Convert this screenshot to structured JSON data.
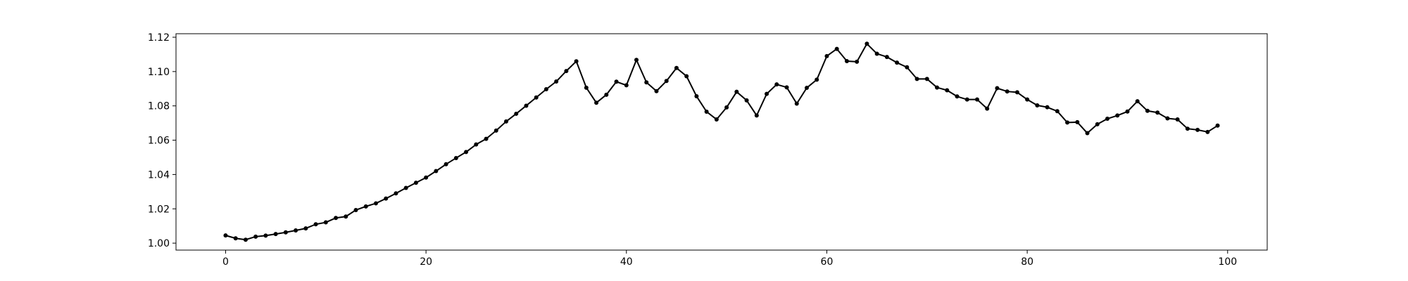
{
  "chart_data": {
    "type": "line",
    "title": "",
    "xlabel": "",
    "ylabel": "",
    "xlim": [
      -4.95,
      103.95
    ],
    "ylim": [
      0.99595,
      1.12205
    ],
    "grid": false,
    "marker": "circle",
    "line_color": "#000000",
    "x_ticks": [
      0,
      20,
      40,
      60,
      80,
      100
    ],
    "x_tick_labels": [
      "0",
      "20",
      "40",
      "60",
      "80",
      "100"
    ],
    "y_ticks": [
      1.0,
      1.02,
      1.04,
      1.06,
      1.08,
      1.1,
      1.12
    ],
    "y_tick_labels": [
      "1.00",
      "1.02",
      "1.04",
      "1.06",
      "1.08",
      "1.10",
      "1.12"
    ],
    "series": [
      {
        "x": [
          0,
          1,
          2,
          3,
          4,
          5,
          6,
          7,
          8,
          9,
          10,
          11,
          12,
          13,
          14,
          15,
          16,
          17,
          18,
          19,
          20,
          21,
          22,
          23,
          24,
          25,
          26,
          27,
          28,
          29,
          30,
          31,
          32,
          33,
          34,
          35,
          36,
          37,
          38,
          39,
          40,
          41,
          42,
          43,
          44,
          45,
          46,
          47,
          48,
          49,
          50,
          51,
          52,
          53,
          54,
          55,
          56,
          57,
          58,
          59,
          60,
          61,
          62,
          63,
          64,
          65,
          66,
          67,
          68,
          69,
          70,
          71,
          72,
          73,
          74,
          75,
          76,
          77,
          78,
          79,
          80,
          81,
          82,
          83,
          84,
          85,
          86,
          87,
          88,
          89,
          90,
          91,
          92,
          93,
          94,
          95,
          96,
          97,
          98,
          99
        ],
        "values": [
          1.0045,
          1.0028,
          1.002,
          1.0038,
          1.0044,
          1.0053,
          1.0063,
          1.0074,
          1.0086,
          1.011,
          1.0121,
          1.0147,
          1.0155,
          1.0193,
          1.0214,
          1.0232,
          1.026,
          1.029,
          1.0322,
          1.0352,
          1.0382,
          1.042,
          1.046,
          1.0496,
          1.0531,
          1.0575,
          1.0608,
          1.0656,
          1.0709,
          1.0754,
          1.0801,
          1.0849,
          1.0897,
          1.0942,
          1.1003,
          1.106,
          1.0906,
          1.0818,
          1.0865,
          1.0941,
          1.092,
          1.1068,
          1.0937,
          1.0886,
          1.0945,
          1.1021,
          1.0973,
          1.0856,
          1.0766,
          1.0721,
          1.0791,
          1.0882,
          1.0832,
          1.0744,
          1.087,
          1.0925,
          1.0908,
          1.0813,
          1.0905,
          1.0953,
          1.109,
          1.1132,
          1.1061,
          1.1057,
          1.1162,
          1.1104,
          1.1085,
          1.1052,
          1.1025,
          1.0957,
          1.0957,
          1.0907,
          1.0891,
          1.0855,
          1.0837,
          1.0837,
          1.0784,
          1.0903,
          1.0884,
          1.0879,
          1.0837,
          1.0803,
          1.0792,
          1.0769,
          1.0703,
          1.0705,
          1.0641,
          1.0693,
          1.0725,
          1.0744,
          1.0767,
          1.0827,
          1.0771,
          1.0761,
          1.0727,
          1.0721,
          1.0667,
          1.066,
          1.0648,
          1.0685
        ]
      }
    ]
  }
}
